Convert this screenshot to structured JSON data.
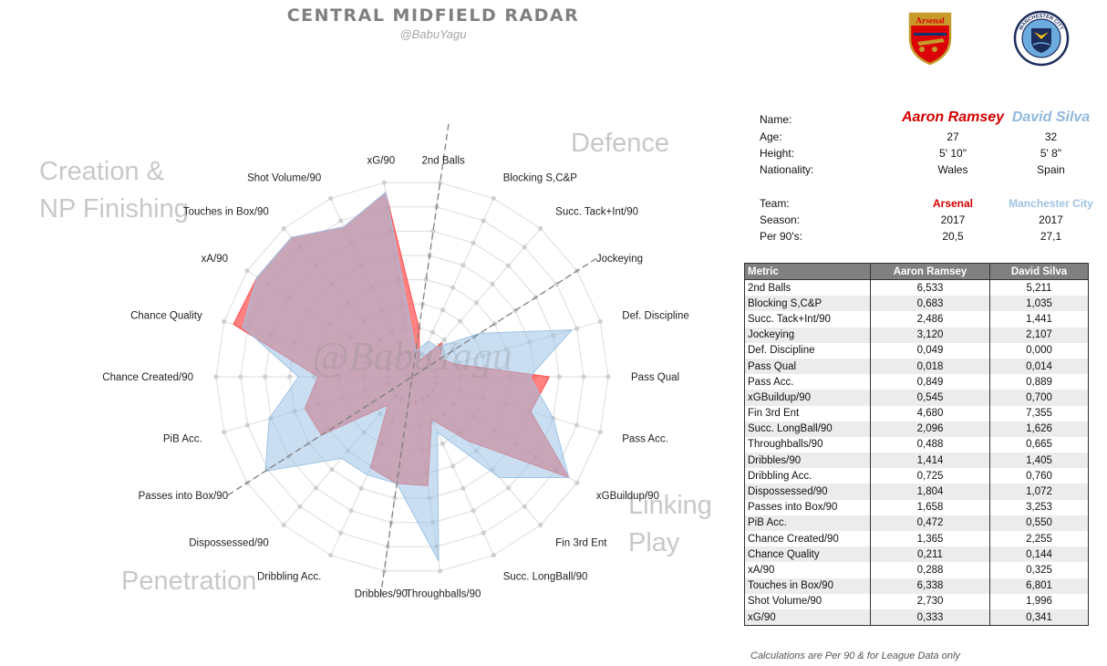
{
  "header": {
    "title": "CENTRAL MIDFIELD RADAR",
    "subtitle": "@BabuYagu"
  },
  "crests": {
    "arsenal": {
      "text": "Arsenal",
      "colors": {
        "red": "#db0007",
        "gold": "#c69b2a",
        "navy": "#063672"
      }
    },
    "mancity": {
      "text": "MANCHESTER CITY",
      "colors": {
        "sky": "#6cabdd",
        "navy": "#1c2c5b"
      }
    }
  },
  "quadrants": {
    "defence": "Defence",
    "creation_line1": "Creation &",
    "creation_line2": "NP Finishing",
    "linking_line1": "Linking",
    "linking_line2": "Play",
    "penetration": "Penetration"
  },
  "watermark": "@BabuYagu",
  "player_info": {
    "name_label": "Name:",
    "age_label": "Age:",
    "height_label": "Height:",
    "nationality_label": "Nationality:",
    "team_label": "Team:",
    "season_label": "Season:",
    "per90_label": "Per 90's:",
    "p1": {
      "name": "Aaron Ramsey",
      "age": "27",
      "height": "5' 10\"",
      "nationality": "Wales",
      "team": "Arsenal",
      "season": "2017",
      "per90": "20,5"
    },
    "p2": {
      "name": "David Silva",
      "age": "32",
      "height": "5' 8\"",
      "nationality": "Spain",
      "team": "Manchester City",
      "season": "2017",
      "per90": "27,1"
    }
  },
  "table": {
    "headers": [
      "Metric",
      "Aaron Ramsey",
      "David Silva"
    ],
    "rows": [
      [
        "2nd Balls",
        "6,533",
        "5,211"
      ],
      [
        "Blocking S,C&P",
        "0,683",
        "1,035"
      ],
      [
        "Succ. Tack+Int/90",
        "2,486",
        "1,441"
      ],
      [
        "Jockeying",
        "3,120",
        "2,107"
      ],
      [
        "Def. Discipline",
        "0,049",
        "0,000"
      ],
      [
        "Pass Qual",
        "0,018",
        "0,014"
      ],
      [
        "Pass Acc.",
        "0,849",
        "0,889"
      ],
      [
        "xGBuildup/90",
        "0,545",
        "0,700"
      ],
      [
        "Fin 3rd Ent",
        "4,680",
        "7,355"
      ],
      [
        "Succ. LongBall/90",
        "2,096",
        "1,626"
      ],
      [
        "Throughballs/90",
        "0,488",
        "0,665"
      ],
      [
        "Dribbles/90",
        "1,414",
        "1,405"
      ],
      [
        "Dribbling Acc.",
        "0,725",
        "0,760"
      ],
      [
        "Dispossessed/90",
        "1,804",
        "1,072"
      ],
      [
        "Passes into Box/90",
        "1,658",
        "3,253"
      ],
      [
        "PiB Acc.",
        "0,472",
        "0,550"
      ],
      [
        "Chance Created/90",
        "1,365",
        "2,255"
      ],
      [
        "Chance Quality",
        "0,211",
        "0,144"
      ],
      [
        "xA/90",
        "0,288",
        "0,325"
      ],
      [
        "Touches in Box/90",
        "6,338",
        "6,801"
      ],
      [
        "Shot Volume/90",
        "2,730",
        "1,996"
      ],
      [
        "xG/90",
        "0,333",
        "0,341"
      ]
    ]
  },
  "note": "Calculations are Per 90  & for League Data only",
  "chart_data": {
    "type": "radar",
    "title": "CENTRAL MIDFIELD RADAR",
    "categories": [
      "2nd Balls",
      "Blocking S,C&P",
      "Succ. Tack+Int/90",
      "Jockeying",
      "Def. Discipline",
      "Pass Qual",
      "Pass Acc.",
      "xGBuildup/90",
      "Fin 3rd Ent",
      "Succ. LongBall/90",
      "Throughballs/90",
      "Dribbles/90",
      "Dribbling Acc.",
      "Dispossessed/90",
      "Passes into Box/90",
      "PiB Acc.",
      "Chance Created/90",
      "Chance Quality",
      "xA/90",
      "Touches in Box/90",
      "Shot Volume/90",
      "xG/90"
    ],
    "scale": [
      0,
      1
    ],
    "rings": 8,
    "series": [
      {
        "name": "Aaron Ramsey",
        "color": "#ff4d4d",
        "opacity": 0.7,
        "values": [
          0.25,
          0.09,
          0.23,
          0.17,
          0.23,
          0.7,
          0.63,
          0.95,
          0.43,
          0.24,
          0.56,
          0.55,
          0.51,
          0.19,
          0.55,
          0.57,
          0.48,
          0.95,
          0.94,
          0.94,
          0.84,
          0.95
        ]
      },
      {
        "name": "David Silva",
        "color": "#9dc3e6",
        "opacity": 0.55,
        "values": [
          0.13,
          0.2,
          0.2,
          0.41,
          0.85,
          0.6,
          0.75,
          0.95,
          0.68,
          0.31,
          0.95,
          0.55,
          0.55,
          0.55,
          0.89,
          0.76,
          0.58,
          0.9,
          0.94,
          0.94,
          0.84,
          0.95
        ]
      }
    ]
  }
}
